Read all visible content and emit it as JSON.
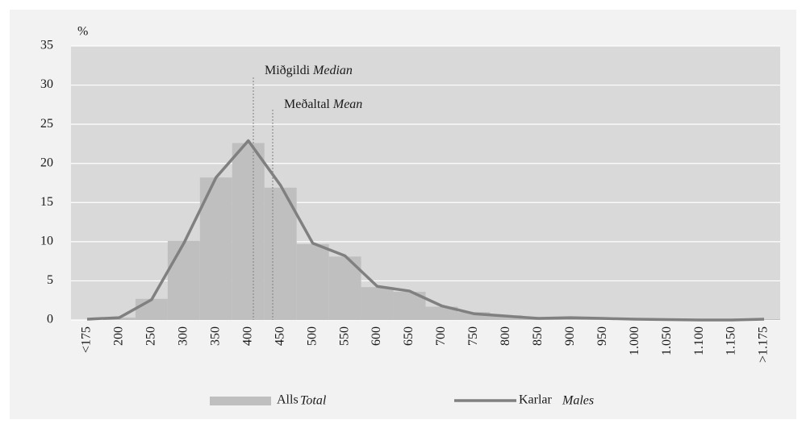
{
  "chart_data": {
    "type": "bar_line",
    "unit": "%",
    "categories": [
      "<175",
      "200",
      "250",
      "300",
      "350",
      "400",
      "450",
      "500",
      "550",
      "600",
      "650",
      "700",
      "750",
      "800",
      "850",
      "900",
      "950",
      "1.000",
      "1.050",
      "1.100",
      "1.150",
      ">1.175"
    ],
    "series": [
      {
        "name": "Alls",
        "name_en": "Total",
        "type": "bar",
        "color": "#bfbfbf",
        "values": [
          0,
          0.3,
          2.7,
          10.1,
          18.2,
          22.6,
          16.9,
          9.7,
          8.1,
          4.2,
          3.6,
          1.7,
          1.0,
          0.6,
          0.3,
          0.3,
          0.2,
          0.1,
          0.1,
          0.1,
          0.1,
          0.1
        ]
      },
      {
        "name": "Karlar",
        "name_en": "Males",
        "type": "line",
        "color": "#808080",
        "values": [
          0.1,
          0.3,
          2.6,
          9.8,
          18.2,
          22.9,
          17.2,
          9.8,
          8.2,
          4.3,
          3.7,
          1.8,
          0.8,
          0.5,
          0.2,
          0.3,
          0.2,
          0.1,
          0.05,
          0,
          0,
          0.1
        ]
      }
    ],
    "annotations": [
      {
        "text": "Miðgildi",
        "text_en": "Median"
      },
      {
        "text": "Meðaltal",
        "text_en": "Mean"
      }
    ],
    "ylim": [
      0,
      35
    ],
    "yticks": [
      0,
      5,
      10,
      15,
      20,
      25,
      30,
      35
    ],
    "grid": true,
    "legend": "bottom"
  }
}
